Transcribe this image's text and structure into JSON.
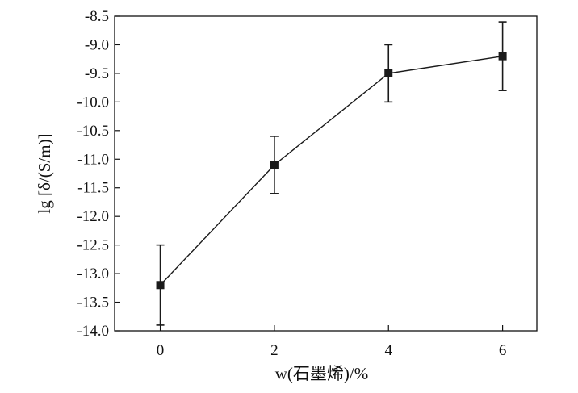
{
  "chart_data": {
    "type": "line",
    "title": "",
    "xlabel": "w(石墨烯)/%",
    "ylabel": "lg [δ/(S/m)]",
    "xlim": [
      -0.8,
      6.6
    ],
    "ylim": [
      -14.0,
      -8.5
    ],
    "x_ticks": [
      "0",
      "2",
      "4",
      "6"
    ],
    "y_ticks": [
      "-8.5",
      "-9.0",
      "-9.5",
      "-10.0",
      "-10.5",
      "-11.0",
      "-11.5",
      "-12.0",
      "-12.5",
      "-13.0",
      "-13.5",
      "-14.0"
    ],
    "grid": false,
    "marker": "square",
    "line_color": "#1a1a1a",
    "series": [
      {
        "x": [
          0,
          2,
          4,
          6
        ],
        "y": [
          -13.2,
          -11.1,
          -9.5,
          -9.2
        ],
        "error_low": [
          -13.9,
          -11.6,
          -10.0,
          -9.8
        ],
        "error_high": [
          -12.5,
          -10.6,
          -9.0,
          -8.6
        ]
      }
    ]
  }
}
